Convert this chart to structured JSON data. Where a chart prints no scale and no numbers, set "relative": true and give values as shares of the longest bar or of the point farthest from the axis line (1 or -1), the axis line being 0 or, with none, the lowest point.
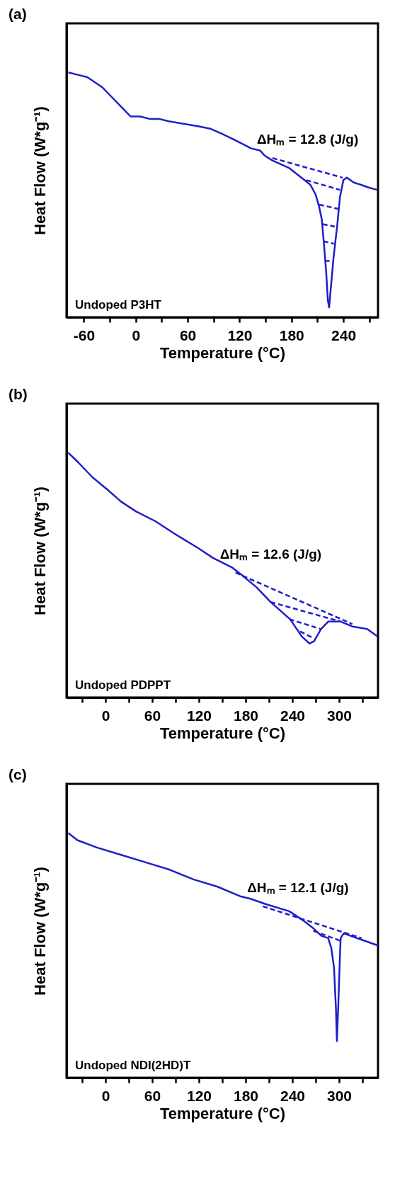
{
  "chart_data": [
    {
      "type": "line",
      "title": "(a)",
      "xlabel": "Temperature (°C)",
      "ylabel": "Heat Flow (W*g⁻¹)",
      "relative": true,
      "tick_labels": "x",
      "xlim": [
        -80,
        280
      ],
      "xticks": [
        -60,
        {
          "value": -30,
          "label": null
        },
        0,
        {
          "value": 30,
          "label": null
        },
        60,
        {
          "value": 90,
          "label": null
        },
        120,
        {
          "value": 150,
          "label": null
        },
        180,
        {
          "value": 210,
          "label": null
        },
        240,
        {
          "value": 270,
          "label": null
        }
      ],
      "annotations": [
        "ΔHₘ = 12.8 (J/g)",
        "Undoped P3HT"
      ],
      "series": [
        {
          "color": "#1f1fc8",
          "line_style": "solid",
          "x": [
            -78,
            -67,
            -56,
            -39,
            -28,
            -17,
            -6,
            5,
            16,
            27,
            38,
            55,
            72,
            86,
            99,
            111,
            122,
            133,
            144,
            149,
            158,
            177,
            195,
            202,
            208,
            212,
            215,
            217.5,
            220,
            222,
            223.5,
            225,
            228.5,
            233,
            236,
            240,
            244,
            252,
            261,
            269,
            279
          ],
          "values": [
            1.0,
            0.99,
            0.98,
            0.94,
            0.9,
            0.86,
            0.82,
            0.82,
            0.81,
            0.81,
            0.8,
            0.79,
            0.78,
            0.77,
            0.75,
            0.73,
            0.71,
            0.69,
            0.68,
            0.66,
            0.64,
            0.61,
            0.56,
            0.54,
            0.5,
            0.45,
            0.4,
            0.3,
            0.19,
            0.07,
            0.04,
            0.1,
            0.24,
            0.38,
            0.49,
            0.56,
            0.57,
            0.55,
            0.54,
            0.53,
            0.52
          ]
        },
        {
          "color": "#1f1fc8",
          "line_style": "dashed",
          "x": [
            158,
            239
          ],
          "values": [
            0.65,
            0.57
          ]
        },
        {
          "color": "#1f1fc8",
          "line_style": "dashed",
          "x": [
            197,
            236
          ],
          "values": [
            0.56,
            0.52
          ]
        },
        {
          "color": "#1f1fc8",
          "line_style": "dashed",
          "x": [
            212,
            237
          ],
          "values": [
            0.46,
            0.44
          ]
        },
        {
          "color": "#1f1fc8",
          "line_style": "dashed",
          "x": [
            216,
            230
          ],
          "values": [
            0.38,
            0.37
          ]
        },
        {
          "color": "#1f1fc8",
          "line_style": "dashed",
          "x": [
            217,
            229
          ],
          "values": [
            0.31,
            0.3
          ]
        },
        {
          "color": "#1f1fc8",
          "line_style": "dashed",
          "x": [
            220,
            224
          ],
          "values": [
            0.23,
            0.23
          ]
        }
      ]
    },
    {
      "type": "line",
      "title": "(b)",
      "xlabel": "Temperature (°C)",
      "ylabel": "Heat Flow (W*g⁻¹)",
      "relative": true,
      "tick_labels": "x",
      "xlim": [
        -50,
        350
      ],
      "xticks": [
        {
          "value": -30,
          "label": null
        },
        0,
        {
          "value": 30,
          "label": null
        },
        60,
        {
          "value": 90,
          "label": null
        },
        120,
        {
          "value": 150,
          "label": null
        },
        180,
        {
          "value": 210,
          "label": null
        },
        240,
        {
          "value": 270,
          "label": null
        },
        300,
        {
          "value": 330,
          "label": null
        }
      ],
      "annotations": [
        "ΔHₘ = 12.6 (J/g)",
        "Undoped PDPPT"
      ],
      "series": [
        {
          "color": "#1f1fc8",
          "line_style": "solid",
          "x": [
            -48,
            -35,
            -17,
            2,
            20,
            39,
            64,
            88,
            119,
            138,
            163,
            175,
            194,
            212,
            237,
            252,
            262,
            268,
            277,
            286,
            302,
            317,
            336,
            349
          ],
          "values": [
            1.0,
            0.96,
            0.9,
            0.85,
            0.8,
            0.76,
            0.72,
            0.67,
            0.61,
            0.57,
            0.53,
            0.5,
            0.45,
            0.39,
            0.32,
            0.25,
            0.22,
            0.23,
            0.28,
            0.31,
            0.31,
            0.29,
            0.28,
            0.25
          ]
        },
        {
          "color": "#1f1fc8",
          "line_style": "dashed",
          "x": [
            167,
            317
          ],
          "values": [
            0.51,
            0.3
          ]
        },
        {
          "color": "#1f1fc8",
          "line_style": "dashed",
          "x": [
            212,
            302
          ],
          "values": [
            0.39,
            0.31
          ]
        },
        {
          "color": "#1f1fc8",
          "line_style": "dashed",
          "x": [
            236,
            276
          ],
          "values": [
            0.32,
            0.28
          ]
        },
        {
          "color": "#1f1fc8",
          "line_style": "dashed",
          "x": [
            250,
            268
          ],
          "values": [
            0.27,
            0.24
          ]
        }
      ]
    },
    {
      "type": "line",
      "title": "(c)",
      "xlabel": "Temperature (°C)",
      "ylabel": "Heat Flow (W*g⁻¹)",
      "relative": true,
      "tick_labels": "x",
      "xlim": [
        -50,
        350
      ],
      "xticks": [
        {
          "value": -30,
          "label": null
        },
        0,
        {
          "value": 30,
          "label": null
        },
        60,
        {
          "value": 90,
          "label": null
        },
        120,
        {
          "value": 150,
          "label": null
        },
        180,
        {
          "value": 210,
          "label": null
        },
        240,
        {
          "value": 270,
          "label": null
        },
        300,
        {
          "value": 330,
          "label": null
        }
      ],
      "annotations": [
        "ΔHₘ = 12.1 (J/g)",
        "Undoped NDI(2HD)T"
      ],
      "series": [
        {
          "color": "#1f1fc8",
          "line_style": "solid",
          "x": [
            -48,
            -36,
            -11,
            20,
            51,
            82,
            113,
            144,
            174,
            187,
            205,
            236,
            255,
            267,
            277,
            286,
            290,
            293.5,
            296,
            297.2,
            298.8,
            300.6,
            302,
            306,
            323,
            350
          ],
          "values": [
            1.0,
            0.97,
            0.94,
            0.91,
            0.88,
            0.85,
            0.81,
            0.78,
            0.74,
            0.73,
            0.71,
            0.68,
            0.64,
            0.61,
            0.58,
            0.57,
            0.53,
            0.45,
            0.28,
            0.15,
            0.28,
            0.45,
            0.57,
            0.59,
            0.57,
            0.54
          ]
        },
        {
          "color": "#1f1fc8",
          "line_style": "dashed",
          "x": [
            202,
            329
          ],
          "values": [
            0.7,
            0.57
          ]
        },
        {
          "color": "#1f1fc8",
          "line_style": "dashed",
          "x": [
            267,
            301
          ],
          "values": [
            0.6,
            0.56
          ]
        }
      ]
    }
  ]
}
